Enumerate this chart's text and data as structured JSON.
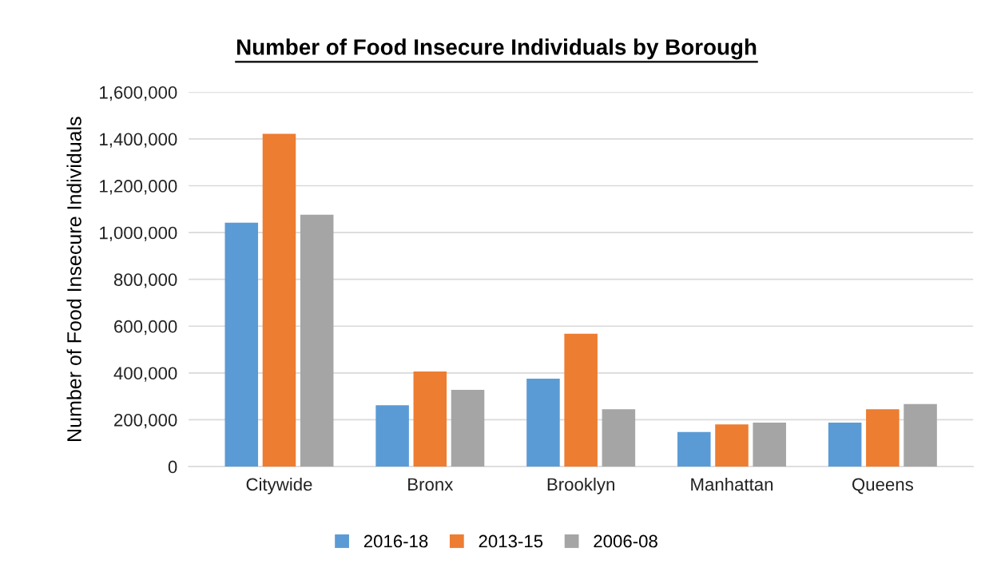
{
  "chart_data": {
    "type": "bar",
    "title": "Number of Food Insecure Individuals by Borough",
    "ylabel": "Number of Food Insecure Individuals",
    "categories": [
      "Citywide",
      "Bronx",
      "Brooklyn",
      "Manhattan",
      "Queens"
    ],
    "series": [
      {
        "name": "2016-18",
        "color": "#5b9bd5",
        "values": [
          1042000,
          262000,
          376000,
          148000,
          188000
        ]
      },
      {
        "name": "2013-15",
        "color": "#ed7d31",
        "values": [
          1422000,
          406000,
          568000,
          180000,
          245000
        ]
      },
      {
        "name": "2006-08",
        "color": "#a5a5a5",
        "values": [
          1076000,
          328000,
          245000,
          188000,
          267000
        ]
      }
    ],
    "ylim": [
      0,
      1600000
    ],
    "yticks": [
      {
        "value": 0,
        "label": "0"
      },
      {
        "value": 200000,
        "label": "200,000"
      },
      {
        "value": 400000,
        "label": "400,000"
      },
      {
        "value": 600000,
        "label": "600,000"
      },
      {
        "value": 800000,
        "label": "800,000"
      },
      {
        "value": 1000000,
        "label": "1,000,000"
      },
      {
        "value": 1200000,
        "label": "1,200,000"
      },
      {
        "value": 1400000,
        "label": "1,400,000"
      },
      {
        "value": 1600000,
        "label": "1,600,000"
      }
    ],
    "grid": "y",
    "legend": "bottom"
  }
}
